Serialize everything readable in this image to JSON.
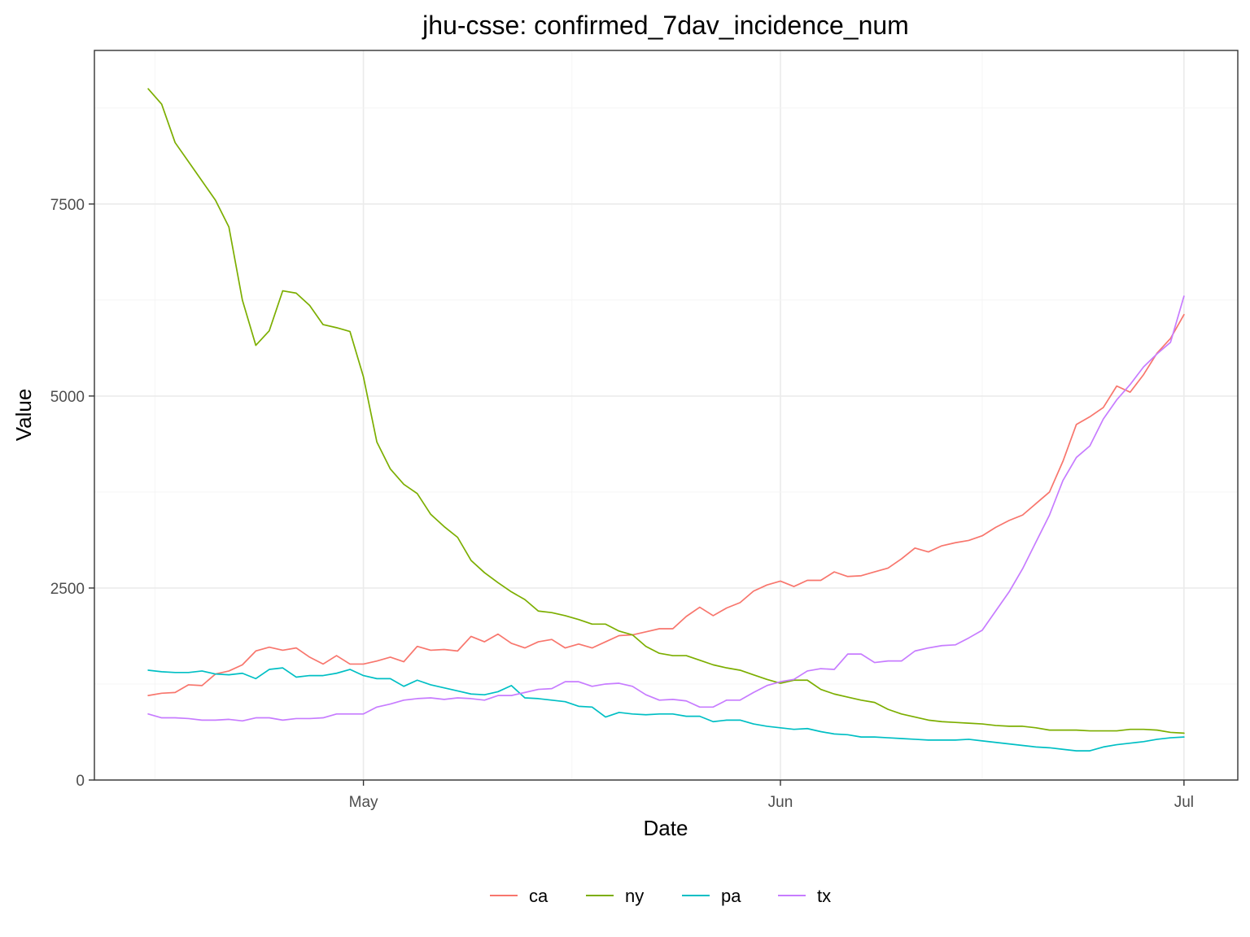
{
  "chart_data": {
    "type": "line",
    "title": "jhu-csse: confirmed_7dav_incidence_num",
    "xlabel": "Date",
    "ylabel": "Value",
    "x_start": "2020-04-15",
    "x_end": "2020-07-01",
    "xlim": [
      "2020-04-11",
      "2020-07-05"
    ],
    "ylim": [
      0,
      9500
    ],
    "x_ticks": [
      {
        "date": "2020-05-01",
        "label": "May"
      },
      {
        "date": "2020-06-01",
        "label": "Jun"
      },
      {
        "date": "2020-07-01",
        "label": "Jul"
      }
    ],
    "y_ticks": [
      {
        "value": 0,
        "label": "0"
      },
      {
        "value": 2500,
        "label": "2500"
      },
      {
        "value": 5000,
        "label": "5000"
      },
      {
        "value": 7500,
        "label": "7500"
      }
    ],
    "grid": true,
    "legend_position": "bottom",
    "series": [
      {
        "name": "ca",
        "color": "#F8766D",
        "values": [
          1100,
          1130,
          1140,
          1240,
          1230,
          1380,
          1420,
          1500,
          1680,
          1730,
          1690,
          1720,
          1600,
          1510,
          1620,
          1510,
          1510,
          1550,
          1600,
          1540,
          1740,
          1690,
          1700,
          1680,
          1870,
          1800,
          1900,
          1780,
          1720,
          1800,
          1830,
          1720,
          1770,
          1720,
          1800,
          1880,
          1890,
          1930,
          1970,
          1970,
          2130,
          2250,
          2140,
          2240,
          2310,
          2460,
          2540,
          2590,
          2520,
          2600,
          2600,
          2710,
          2650,
          2660,
          2710,
          2760,
          2880,
          3020,
          2970,
          3050,
          3090,
          3120,
          3180,
          3290,
          3380,
          3450,
          3600,
          3750,
          4150,
          4630,
          4730,
          4850,
          5130,
          5050,
          5280,
          5560,
          5750,
          6060
        ]
      },
      {
        "name": "ny",
        "color": "#7CAE00",
        "values": [
          9000,
          8800,
          8300,
          8050,
          7800,
          7550,
          7200,
          6250,
          5660,
          5850,
          6370,
          6340,
          6180,
          5930,
          5890,
          5840,
          5250,
          4400,
          4050,
          3850,
          3730,
          3460,
          3300,
          3160,
          2860,
          2700,
          2570,
          2450,
          2350,
          2200,
          2180,
          2140,
          2090,
          2030,
          2030,
          1940,
          1890,
          1740,
          1650,
          1620,
          1620,
          1560,
          1500,
          1460,
          1430,
          1370,
          1310,
          1260,
          1300,
          1300,
          1180,
          1120,
          1080,
          1040,
          1010,
          920,
          860,
          820,
          780,
          760,
          750,
          740,
          730,
          710,
          700,
          700,
          680,
          650,
          650,
          650,
          640,
          640,
          640,
          660,
          660,
          650,
          620,
          610
        ]
      },
      {
        "name": "pa",
        "color": "#00BFC4",
        "values": [
          1430,
          1410,
          1400,
          1400,
          1420,
          1380,
          1370,
          1390,
          1320,
          1440,
          1460,
          1340,
          1360,
          1360,
          1390,
          1440,
          1360,
          1320,
          1320,
          1220,
          1300,
          1240,
          1200,
          1160,
          1120,
          1110,
          1150,
          1230,
          1070,
          1060,
          1040,
          1020,
          960,
          950,
          820,
          880,
          860,
          850,
          860,
          860,
          830,
          830,
          760,
          780,
          780,
          730,
          700,
          680,
          660,
          670,
          630,
          600,
          590,
          560,
          560,
          550,
          540,
          530,
          520,
          520,
          520,
          530,
          510,
          490,
          470,
          450,
          430,
          420,
          400,
          380,
          380,
          430,
          460,
          480,
          500,
          530,
          550,
          560
        ]
      },
      {
        "name": "tx",
        "color": "#C77CFF",
        "values": [
          860,
          810,
          810,
          800,
          780,
          780,
          790,
          770,
          810,
          810,
          780,
          800,
          800,
          810,
          860,
          860,
          860,
          950,
          990,
          1040,
          1060,
          1070,
          1050,
          1070,
          1060,
          1040,
          1100,
          1100,
          1140,
          1180,
          1190,
          1280,
          1280,
          1220,
          1250,
          1260,
          1220,
          1110,
          1040,
          1050,
          1030,
          950,
          950,
          1040,
          1040,
          1140,
          1230,
          1280,
          1310,
          1420,
          1450,
          1440,
          1640,
          1640,
          1530,
          1550,
          1550,
          1680,
          1720,
          1750,
          1760,
          1850,
          1950,
          2200,
          2450,
          2750,
          3100,
          3450,
          3900,
          4200,
          4350,
          4700,
          4950,
          5150,
          5380,
          5550,
          5700,
          6300
        ]
      }
    ]
  }
}
